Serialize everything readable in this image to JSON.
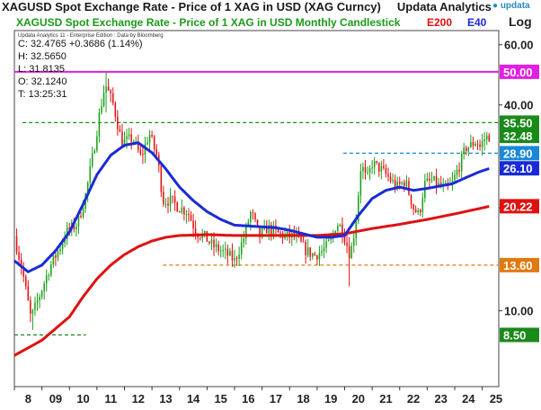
{
  "header": {
    "title": "XAGUSD Spot Exchange Rate - Price of 1 XAG in USD (XAG Curncy)",
    "brand": "Updata Analytics",
    "logo": "updata",
    "subtitle": "XAGUSD Spot Exchange Rate - Price of 1 XAG in USD Monthly Candlestick",
    "legend_e200": "E200",
    "legend_e40": "E40",
    "scale_label": "Log",
    "credit": "Updata Analytics 11 - Enterprise Edition : Data by Bloomberg"
  },
  "readout": {
    "close": "C: 32.4765 +0.3686 (1.14%)",
    "high": "H: 32.5650",
    "low": "L: 31.8135",
    "open": "O: 32.1240",
    "time": "T: 13:25:31"
  },
  "colors": {
    "up_candle": "#1aa01a",
    "down_candle": "#e01010",
    "e40": "#1a2ad8",
    "e200": "#e01010",
    "magenta": "#e020e0",
    "green_level": "#1a8a1a",
    "blue_level": "#1a88d8",
    "orange_level": "#e07a10"
  },
  "chart_data": {
    "type": "candlestick",
    "title": "XAGUSD Spot Exchange Rate - Price of 1 XAG in USD Monthly Candlestick",
    "y_scale": "log",
    "ylim": [
      6.0,
      66.0
    ],
    "y_ticks": [
      10.0,
      20.0,
      40.0,
      60.0
    ],
    "y_tick_labels": [
      "10.00",
      "20.00",
      "40.00",
      "60.00"
    ],
    "x_start_year": 2008,
    "x_end_year": 2025.6,
    "x_ticks": [
      8,
      9,
      10,
      11,
      12,
      13,
      14,
      15,
      16,
      17,
      18,
      19,
      20,
      21,
      22,
      23,
      24,
      25
    ],
    "x_tick_labels": [
      "8",
      "09",
      "10",
      "11",
      "12",
      "13",
      "14",
      "15",
      "16",
      "17",
      "18",
      "19",
      "20",
      "21",
      "22",
      "23",
      "24",
      "25"
    ],
    "levels": [
      {
        "value": 50.0,
        "label": "50.00",
        "style": "solid",
        "color": "#e020e0",
        "x_from": 2008.0,
        "x_to": 2025.6
      },
      {
        "value": 35.5,
        "label": "35.50",
        "style": "dashed",
        "color": "#1a8a1a",
        "x_from": 2008.3,
        "x_to": 2025.6
      },
      {
        "value": 28.9,
        "label": "28.90",
        "style": "dashed",
        "color": "#1a88d8",
        "x_from": 2019.95,
        "x_to": 2025.6
      },
      {
        "value": 13.6,
        "label": "13.60",
        "style": "dashed",
        "color": "#e07a10",
        "x_from": 2013.4,
        "x_to": 2025.6
      },
      {
        "value": 8.5,
        "label": "8.50",
        "style": "dashed",
        "color": "#1a8a1a",
        "x_from": 2008.0,
        "x_to": 2010.6
      }
    ],
    "value_labels": [
      {
        "value": 32.48,
        "label": "32.48",
        "color": "#1a8a1a"
      },
      {
        "value": 26.1,
        "label": "26.10",
        "color": "#1a2ad8"
      },
      {
        "value": 20.22,
        "label": "20.22",
        "color": "#e01010"
      }
    ],
    "close_anchors": [
      [
        2008.0,
        16.5
      ],
      [
        2008.3,
        13.0
      ],
      [
        2008.6,
        9.5
      ],
      [
        2008.9,
        11.0
      ],
      [
        2009.3,
        13.5
      ],
      [
        2009.6,
        15.0
      ],
      [
        2009.9,
        17.0
      ],
      [
        2010.3,
        18.0
      ],
      [
        2010.6,
        22.0
      ],
      [
        2010.9,
        30.0
      ],
      [
        2011.1,
        38.0
      ],
      [
        2011.3,
        46.0
      ],
      [
        2011.6,
        40.0
      ],
      [
        2011.9,
        31.0
      ],
      [
        2012.3,
        32.0
      ],
      [
        2012.6,
        28.0
      ],
      [
        2012.9,
        33.0
      ],
      [
        2013.2,
        28.0
      ],
      [
        2013.4,
        21.0
      ],
      [
        2013.7,
        21.0
      ],
      [
        2014.0,
        20.0
      ],
      [
        2014.3,
        19.5
      ],
      [
        2014.6,
        17.0
      ],
      [
        2014.9,
        16.5
      ],
      [
        2015.2,
        15.5
      ],
      [
        2015.5,
        15.0
      ],
      [
        2015.8,
        14.5
      ],
      [
        2016.0,
        14.0
      ],
      [
        2016.3,
        16.0
      ],
      [
        2016.6,
        19.5
      ],
      [
        2016.9,
        16.5
      ],
      [
        2017.2,
        17.5
      ],
      [
        2017.6,
        16.8
      ],
      [
        2017.9,
        16.5
      ],
      [
        2018.2,
        16.5
      ],
      [
        2018.6,
        15.0
      ],
      [
        2018.9,
        14.5
      ],
      [
        2019.2,
        15.0
      ],
      [
        2019.5,
        16.0
      ],
      [
        2019.7,
        18.0
      ],
      [
        2019.9,
        17.5
      ],
      [
        2020.2,
        14.5
      ],
      [
        2020.4,
        18.0
      ],
      [
        2020.6,
        27.0
      ],
      [
        2020.8,
        24.0
      ],
      [
        2021.0,
        27.0
      ],
      [
        2021.3,
        26.0
      ],
      [
        2021.6,
        24.5
      ],
      [
        2021.9,
        23.0
      ],
      [
        2022.2,
        24.0
      ],
      [
        2022.5,
        20.0
      ],
      [
        2022.7,
        19.0
      ],
      [
        2022.9,
        23.5
      ],
      [
        2023.2,
        24.0
      ],
      [
        2023.5,
        23.0
      ],
      [
        2023.7,
        22.8
      ],
      [
        2023.9,
        23.5
      ],
      [
        2024.2,
        27.0
      ],
      [
        2024.4,
        30.0
      ],
      [
        2024.6,
        30.5
      ],
      [
        2024.8,
        31.5
      ],
      [
        2024.9,
        30.0
      ],
      [
        2025.1,
        32.0
      ],
      [
        2025.28,
        32.48
      ]
    ],
    "e40_anchors": [
      [
        2008.0,
        14.0
      ],
      [
        2008.5,
        13.0
      ],
      [
        2009.0,
        13.6
      ],
      [
        2009.5,
        15.0
      ],
      [
        2010.0,
        17.0
      ],
      [
        2010.5,
        20.5
      ],
      [
        2011.0,
        25.0
      ],
      [
        2011.5,
        28.5
      ],
      [
        2012.0,
        30.5
      ],
      [
        2012.5,
        31.0
      ],
      [
        2013.0,
        29.0
      ],
      [
        2013.5,
        26.0
      ],
      [
        2014.0,
        23.0
      ],
      [
        2014.5,
        21.0
      ],
      [
        2015.0,
        19.5
      ],
      [
        2015.5,
        18.5
      ],
      [
        2016.0,
        17.8
      ],
      [
        2016.5,
        17.7
      ],
      [
        2017.0,
        17.6
      ],
      [
        2017.5,
        17.5
      ],
      [
        2018.0,
        17.2
      ],
      [
        2018.5,
        16.8
      ],
      [
        2019.0,
        16.4
      ],
      [
        2019.5,
        16.4
      ],
      [
        2020.0,
        16.6
      ],
      [
        2020.5,
        19.0
      ],
      [
        2021.0,
        21.3
      ],
      [
        2021.5,
        22.5
      ],
      [
        2022.0,
        23.0
      ],
      [
        2022.5,
        22.5
      ],
      [
        2023.0,
        22.8
      ],
      [
        2023.5,
        23.2
      ],
      [
        2023.9,
        23.5
      ],
      [
        2024.4,
        24.5
      ],
      [
        2024.9,
        25.5
      ],
      [
        2025.28,
        26.1
      ]
    ],
    "e200_anchors": [
      [
        2008.0,
        7.4
      ],
      [
        2009.0,
        8.2
      ],
      [
        2010.0,
        9.6
      ],
      [
        2010.5,
        11.0
      ],
      [
        2011.0,
        12.4
      ],
      [
        2011.5,
        13.6
      ],
      [
        2012.0,
        14.6
      ],
      [
        2012.5,
        15.4
      ],
      [
        2013.0,
        16.0
      ],
      [
        2013.5,
        16.4
      ],
      [
        2014.0,
        16.6
      ],
      [
        2015.0,
        16.7
      ],
      [
        2016.0,
        16.6
      ],
      [
        2017.0,
        16.6
      ],
      [
        2018.0,
        16.6
      ],
      [
        2019.0,
        16.6
      ],
      [
        2020.0,
        16.8
      ],
      [
        2021.0,
        17.4
      ],
      [
        2022.0,
        17.9
      ],
      [
        2023.0,
        18.5
      ],
      [
        2024.0,
        19.2
      ],
      [
        2025.28,
        20.22
      ]
    ],
    "intramonth_range_percent": 6,
    "notable_extremes": [
      {
        "x": 2011.3,
        "high": 49.8,
        "low": 38.0
      },
      {
        "x": 2008.7,
        "low": 8.8
      },
      {
        "x": 2020.2,
        "low": 11.8
      }
    ]
  }
}
